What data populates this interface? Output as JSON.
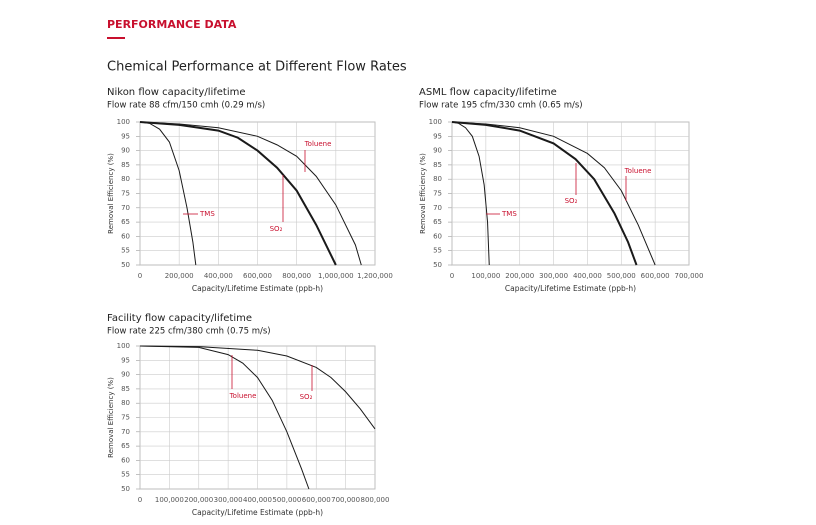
{
  "header": {
    "section": "PERFORMANCE DATA",
    "title": "Chemical Performance at Different Flow Rates"
  },
  "chart_data": [
    {
      "type": "line",
      "title": "Nikon flow capacity/lifetime",
      "subtitle": "Flow rate 88 cfm/150 cmh (0.29 m/s)",
      "x_label": "Capacity/Lifetime Estimate (ppb-h)",
      "y_label": "Removal Efficiency (%)",
      "xlim": [
        0,
        1200000
      ],
      "xticks": [
        0,
        {
          "value": 200000,
          "label": "200,000"
        },
        {
          "value": 400000,
          "label": "400,000"
        },
        {
          "value": 600000,
          "label": "600,000"
        },
        {
          "value": 800000,
          "label": "800,000"
        },
        {
          "value": 1000000,
          "label": "1,000,000"
        },
        {
          "value": 1200000,
          "label": "1,200,000"
        }
      ],
      "ylim": [
        50,
        100
      ],
      "yticks": [
        50,
        55,
        60,
        65,
        70,
        75,
        80,
        85,
        90,
        95,
        100
      ],
      "grid": true,
      "series": [
        {
          "name": "TMS",
          "color": "#1a1a1a",
          "x": [
            0,
            50000,
            100000,
            150000,
            200000,
            240000,
            270000,
            285000
          ],
          "values": [
            100,
            99.5,
            97.5,
            93,
            83,
            70,
            58,
            50
          ]
        },
        {
          "name": "SO₂",
          "color": "#1a1a1a",
          "x": [
            0,
            200000,
            400000,
            500000,
            600000,
            700000,
            800000,
            900000,
            1000000
          ],
          "values": [
            100,
            99,
            97,
            94.5,
            90,
            84,
            76,
            64,
            50
          ]
        },
        {
          "name": "Toluene",
          "color": "#1a1a1a",
          "x": [
            0,
            200000,
            400000,
            600000,
            700000,
            800000,
            900000,
            1000000,
            1100000,
            1130000
          ],
          "values": [
            100,
            99.3,
            98,
            95,
            92,
            88,
            81,
            71,
            57,
            50
          ]
        }
      ]
    },
    {
      "type": "line",
      "title": "ASML flow capacity/lifetime",
      "subtitle": "Flow rate 195 cfm/330 cmh (0.65 m/s)",
      "x_label": "Capacity/Lifetime Estimate (ppb-h)",
      "y_label": "Removal Efficiency (%)",
      "xlim": [
        0,
        700000
      ],
      "xticks": [
        0,
        {
          "value": 100000,
          "label": "100,000"
        },
        {
          "value": 200000,
          "label": "200,000"
        },
        {
          "value": 300000,
          "label": "300,000"
        },
        {
          "value": 400000,
          "label": "400,000"
        },
        {
          "value": 500000,
          "label": "500,000"
        },
        {
          "value": 600000,
          "label": "600,000"
        },
        {
          "value": 700000,
          "label": "700,000"
        }
      ],
      "ylim": [
        50,
        100
      ],
      "yticks": [
        50,
        55,
        60,
        65,
        70,
        75,
        80,
        85,
        90,
        95,
        100
      ],
      "grid": true,
      "series": [
        {
          "name": "TMS",
          "color": "#1a1a1a",
          "x": [
            0,
            20000,
            40000,
            60000,
            80000,
            95000,
            105000,
            110000
          ],
          "values": [
            100,
            99.5,
            98,
            95,
            88,
            78,
            65,
            50
          ]
        },
        {
          "name": "SO₂",
          "color": "#1a1a1a",
          "x": [
            0,
            100000,
            200000,
            300000,
            365000,
            420000,
            480000,
            520000,
            545000
          ],
          "values": [
            100,
            99,
            97,
            92.5,
            87,
            80,
            68,
            58,
            50
          ]
        },
        {
          "name": "Toluene",
          "color": "#1a1a1a",
          "x": [
            0,
            100000,
            200000,
            300000,
            400000,
            450000,
            500000,
            550000,
            600000
          ],
          "values": [
            100,
            99.3,
            98,
            95,
            89,
            84,
            76,
            64,
            50
          ]
        }
      ]
    },
    {
      "type": "line",
      "title": "Facility flow capacity/lifetime",
      "subtitle": "Flow rate 225 cfm/380 cmh (0.75 m/s)",
      "x_label": "Capacity/Lifetime Estimate (ppb-h)",
      "y_label": "Removal Efficiency (%)",
      "xlim": [
        0,
        800000
      ],
      "xticks": [
        0,
        {
          "value": 100000,
          "label": "100,000"
        },
        {
          "value": 200000,
          "label": "200,000"
        },
        {
          "value": 300000,
          "label": "300,000"
        },
        {
          "value": 400000,
          "label": "400,000"
        },
        {
          "value": 500000,
          "label": "500,000"
        },
        {
          "value": 600000,
          "label": "600,000"
        },
        {
          "value": 700000,
          "label": "700,000"
        },
        {
          "value": 800000,
          "label": "800,000"
        }
      ],
      "ylim": [
        50,
        100
      ],
      "yticks": [
        50,
        55,
        60,
        65,
        70,
        75,
        80,
        85,
        90,
        95,
        100
      ],
      "grid": true,
      "series": [
        {
          "name": "Toluene",
          "color": "#1a1a1a",
          "x": [
            0,
            200000,
            300000,
            350000,
            400000,
            450000,
            500000,
            550000,
            575000
          ],
          "values": [
            100,
            99.5,
            97,
            94,
            89,
            81,
            70,
            57,
            50
          ]
        },
        {
          "name": "SO₂",
          "color": "#1a1a1a",
          "x": [
            0,
            200000,
            400000,
            500000,
            600000,
            650000,
            700000,
            750000,
            800000
          ],
          "values": [
            100,
            99.8,
            98.5,
            96.5,
            92.5,
            89,
            84,
            78,
            71
          ]
        }
      ]
    }
  ]
}
